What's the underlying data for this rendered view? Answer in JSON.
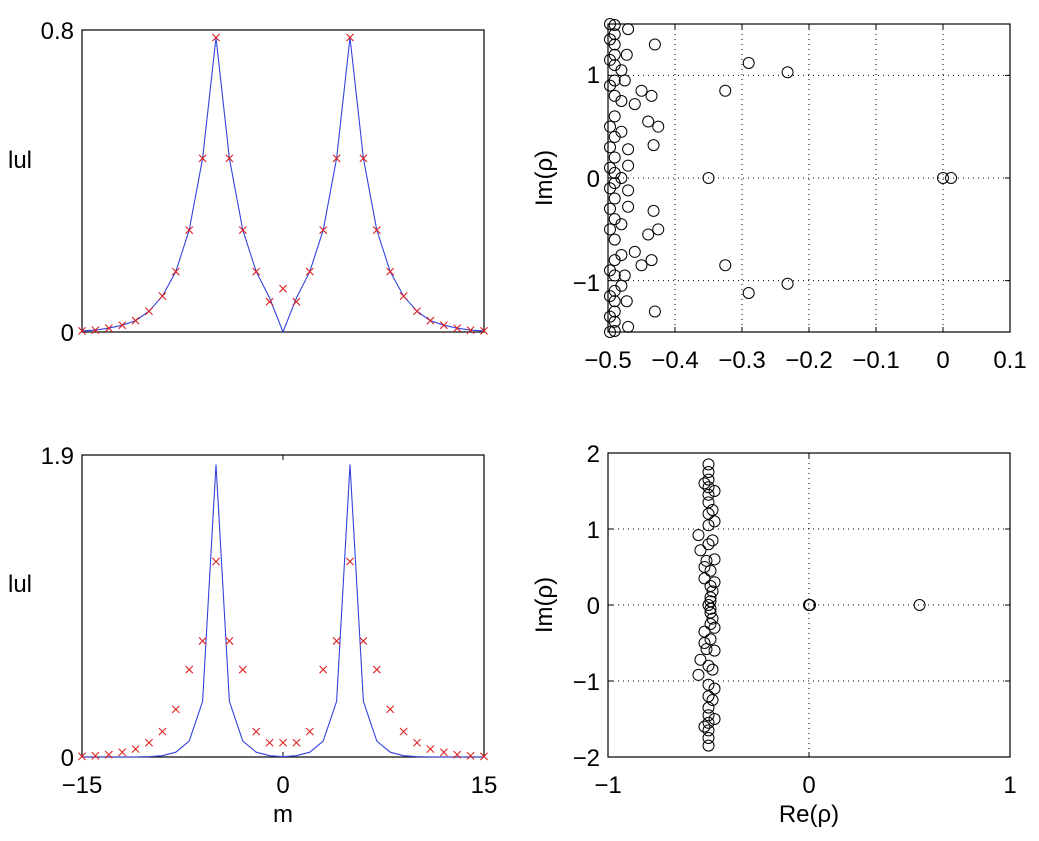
{
  "figure": {
    "colors": {
      "line": "#3344dd",
      "marker": "#dd2222",
      "circle": "#000000"
    }
  },
  "chart_data": [
    {
      "type": "line",
      "panel": "top-left",
      "title": "",
      "xlabel": "",
      "ylabel": "lul",
      "xlim": [
        -15,
        15
      ],
      "ylim": [
        0,
        0.8
      ],
      "xticks": [],
      "yticks": [
        "0",
        "0.8"
      ],
      "grid": false,
      "series": [
        {
          "name": "line",
          "style": "line",
          "x": [
            -15,
            -14,
            -13,
            -12,
            -11,
            -10,
            -9,
            -8,
            -7,
            -6,
            -5,
            -4,
            -3,
            -2,
            -1,
            0,
            1,
            2,
            3,
            4,
            5,
            6,
            7,
            8,
            9,
            10,
            11,
            12,
            13,
            14,
            15
          ],
          "y": [
            0.003,
            0.005,
            0.01,
            0.018,
            0.03,
            0.055,
            0.095,
            0.16,
            0.27,
            0.46,
            0.78,
            0.46,
            0.27,
            0.16,
            0.09,
            0.0,
            0.09,
            0.16,
            0.27,
            0.46,
            0.78,
            0.46,
            0.27,
            0.16,
            0.095,
            0.055,
            0.03,
            0.018,
            0.01,
            0.005,
            0.003
          ]
        },
        {
          "name": "markers",
          "style": "x",
          "x": [
            -15,
            -14,
            -13,
            -12,
            -11,
            -10,
            -9,
            -8,
            -7,
            -6,
            -5,
            -4,
            -3,
            -2,
            -1,
            0,
            1,
            2,
            3,
            4,
            5,
            6,
            7,
            8,
            9,
            10,
            11,
            12,
            13,
            14,
            15
          ],
          "y": [
            0.003,
            0.005,
            0.01,
            0.018,
            0.03,
            0.055,
            0.095,
            0.16,
            0.27,
            0.46,
            0.78,
            0.46,
            0.27,
            0.16,
            0.08,
            0.115,
            0.08,
            0.16,
            0.27,
            0.46,
            0.78,
            0.46,
            0.27,
            0.16,
            0.095,
            0.055,
            0.03,
            0.018,
            0.01,
            0.005,
            0.003
          ]
        }
      ]
    },
    {
      "type": "scatter",
      "panel": "top-right",
      "title": "",
      "xlabel": "",
      "ylabel": "Im(ρ)",
      "xlim": [
        -0.5,
        0.1
      ],
      "ylim": [
        -1.5,
        1.5
      ],
      "xticks": [
        "−0.5",
        "−0.4",
        "−0.3",
        "−0.2",
        "−0.1",
        "0",
        "0.1"
      ],
      "xtick_values": [
        -0.5,
        -0.4,
        -0.3,
        -0.2,
        -0.1,
        0,
        0.1
      ],
      "yticks": [
        "−1",
        "0",
        "1"
      ],
      "ytick_values": [
        -1,
        0,
        1
      ],
      "grid": true,
      "series": [
        {
          "name": "eigenvalues",
          "style": "o",
          "points": [
            [
              0.0,
              0.0
            ],
            [
              0.012,
              0.0
            ],
            [
              -0.35,
              0.0
            ],
            [
              -0.232,
              1.03
            ],
            [
              -0.232,
              -1.03
            ],
            [
              -0.29,
              1.12
            ],
            [
              -0.29,
              -1.12
            ],
            [
              -0.325,
              0.85
            ],
            [
              -0.325,
              -0.85
            ],
            [
              -0.43,
              1.3
            ],
            [
              -0.43,
              -1.3
            ],
            [
              -0.425,
              0.5
            ],
            [
              -0.425,
              -0.5
            ],
            [
              -0.44,
              0.55
            ],
            [
              -0.44,
              -0.55
            ],
            [
              -0.432,
              0.32
            ],
            [
              -0.432,
              -0.32
            ],
            [
              -0.435,
              0.8
            ],
            [
              -0.435,
              -0.8
            ],
            [
              -0.45,
              0.85
            ],
            [
              -0.45,
              -0.85
            ],
            [
              -0.46,
              0.72
            ],
            [
              -0.46,
              -0.72
            ],
            [
              -0.47,
              1.45
            ],
            [
              -0.47,
              -1.45
            ],
            [
              -0.472,
              1.2
            ],
            [
              -0.472,
              -1.2
            ],
            [
              -0.475,
              0.95
            ],
            [
              -0.475,
              -0.95
            ],
            [
              -0.47,
              0.28
            ],
            [
              -0.47,
              -0.28
            ],
            [
              -0.47,
              0.12
            ],
            [
              -0.47,
              -0.12
            ],
            [
              -0.48,
              0.75
            ],
            [
              -0.48,
              -0.75
            ],
            [
              -0.48,
              1.05
            ],
            [
              -0.48,
              -1.05
            ],
            [
              -0.48,
              0.45
            ],
            [
              -0.48,
              -0.45
            ],
            [
              -0.48,
              0.0
            ],
            [
              -0.49,
              1.49
            ],
            [
              -0.49,
              -1.49
            ],
            [
              -0.49,
              1.4
            ],
            [
              -0.49,
              -1.4
            ],
            [
              -0.49,
              1.3
            ],
            [
              -0.49,
              -1.3
            ],
            [
              -0.49,
              1.2
            ],
            [
              -0.49,
              -1.2
            ],
            [
              -0.49,
              1.1
            ],
            [
              -0.49,
              -1.1
            ],
            [
              -0.49,
              0.95
            ],
            [
              -0.49,
              -0.95
            ],
            [
              -0.49,
              0.8
            ],
            [
              -0.49,
              -0.8
            ],
            [
              -0.49,
              0.6
            ],
            [
              -0.49,
              -0.6
            ],
            [
              -0.49,
              0.4
            ],
            [
              -0.49,
              -0.4
            ],
            [
              -0.49,
              0.2
            ],
            [
              -0.49,
              -0.2
            ],
            [
              -0.49,
              0.05
            ],
            [
              -0.49,
              -0.05
            ],
            [
              -0.497,
              1.5
            ],
            [
              -0.497,
              -1.5
            ],
            [
              -0.497,
              1.35
            ],
            [
              -0.497,
              -1.35
            ],
            [
              -0.497,
              1.15
            ],
            [
              -0.497,
              -1.15
            ],
            [
              -0.497,
              0.9
            ],
            [
              -0.497,
              -0.9
            ],
            [
              -0.497,
              0.5
            ],
            [
              -0.497,
              -0.5
            ],
            [
              -0.497,
              0.3
            ],
            [
              -0.497,
              -0.3
            ],
            [
              -0.497,
              0.1
            ],
            [
              -0.497,
              -0.1
            ]
          ]
        }
      ]
    },
    {
      "type": "line",
      "panel": "bottom-left",
      "title": "",
      "xlabel": "m",
      "ylabel": "lul",
      "xlim": [
        -15,
        15
      ],
      "ylim": [
        0,
        1.9
      ],
      "xticks": [
        "−15",
        "0",
        "15"
      ],
      "xtick_values": [
        -15,
        0,
        15
      ],
      "yticks": [
        "0",
        "1.9"
      ],
      "ytick_values": [
        0,
        1.9
      ],
      "grid": false,
      "series": [
        {
          "name": "line",
          "style": "line",
          "x": [
            -15,
            -14,
            -13,
            -12,
            -11,
            -10,
            -9,
            -8,
            -7,
            -6,
            -5,
            -4,
            -3,
            -2,
            -1,
            0,
            1,
            2,
            3,
            4,
            5,
            6,
            7,
            8,
            9,
            10,
            11,
            12,
            13,
            14,
            15
          ],
          "y": [
            0.0,
            0.0,
            0.0,
            0.0,
            0.0,
            0.002,
            0.008,
            0.03,
            0.1,
            0.35,
            1.84,
            0.35,
            0.1,
            0.03,
            0.008,
            0.002,
            0.008,
            0.03,
            0.1,
            0.35,
            1.84,
            0.35,
            0.1,
            0.03,
            0.008,
            0.002,
            0.0,
            0.0,
            0.0,
            0.0,
            0.0
          ]
        },
        {
          "name": "markers",
          "style": "x",
          "x": [
            -15,
            -14,
            -13,
            -12,
            -11,
            -10,
            -9,
            -8,
            -7,
            -6,
            -5,
            -4,
            -3,
            -2,
            -1,
            0,
            1,
            2,
            3,
            4,
            5,
            6,
            7,
            8,
            9,
            10,
            11,
            12,
            13,
            14,
            15
          ],
          "y": [
            0.004,
            0.008,
            0.015,
            0.03,
            0.05,
            0.09,
            0.16,
            0.3,
            0.55,
            0.73,
            1.23,
            0.73,
            0.55,
            0.16,
            0.09,
            0.09,
            0.09,
            0.16,
            0.55,
            0.73,
            1.23,
            0.73,
            0.55,
            0.3,
            0.16,
            0.09,
            0.05,
            0.03,
            0.015,
            0.008,
            0.004
          ]
        }
      ]
    },
    {
      "type": "scatter",
      "panel": "bottom-right",
      "title": "",
      "xlabel": "Re(ρ)",
      "ylabel": "Im(ρ)",
      "xlim": [
        -1,
        1
      ],
      "ylim": [
        -2,
        2
      ],
      "xticks": [
        "−1",
        "0",
        "1"
      ],
      "xtick_values": [
        -1,
        0,
        1
      ],
      "yticks": [
        "−2",
        "−1",
        "0",
        "1",
        "2"
      ],
      "ytick_values": [
        -2,
        -1,
        0,
        1,
        2
      ],
      "grid": true,
      "series": [
        {
          "name": "eigenvalues",
          "style": "o",
          "points": [
            [
              0.0,
              0.0
            ],
            [
              0.005,
              0.0
            ],
            [
              0.55,
              0.0
            ],
            [
              -0.55,
              0.92
            ],
            [
              -0.55,
              -0.92
            ],
            [
              -0.54,
              0.72
            ],
            [
              -0.54,
              -0.72
            ],
            [
              -0.5,
              1.2
            ],
            [
              -0.5,
              -1.2
            ],
            [
              -0.51,
              0.58
            ],
            [
              -0.51,
              -0.58
            ],
            [
              -0.52,
              0.35
            ],
            [
              -0.52,
              -0.35
            ],
            [
              -0.48,
              0.18
            ],
            [
              -0.48,
              -0.18
            ],
            [
              -0.49,
              0.05
            ],
            [
              -0.49,
              -0.05
            ],
            [
              -0.5,
              0.0
            ],
            [
              -0.5,
              1.85
            ],
            [
              -0.5,
              -1.85
            ],
            [
              -0.5,
              1.75
            ],
            [
              -0.5,
              -1.75
            ],
            [
              -0.5,
              1.65
            ],
            [
              -0.5,
              -1.65
            ],
            [
              -0.5,
              1.55
            ],
            [
              -0.5,
              -1.55
            ],
            [
              -0.5,
              1.45
            ],
            [
              -0.5,
              -1.45
            ],
            [
              -0.5,
              1.35
            ],
            [
              -0.5,
              -1.35
            ],
            [
              -0.5,
              1.05
            ],
            [
              -0.5,
              -1.05
            ],
            [
              -0.5,
              0.8
            ],
            [
              -0.5,
              -0.8
            ],
            [
              -0.49,
              0.45
            ],
            [
              -0.49,
              -0.45
            ],
            [
              -0.49,
              0.25
            ],
            [
              -0.49,
              -0.25
            ],
            [
              -0.49,
              0.1
            ],
            [
              -0.49,
              -0.1
            ],
            [
              -0.47,
              1.5
            ],
            [
              -0.47,
              -1.5
            ],
            [
              -0.47,
              1.1
            ],
            [
              -0.47,
              -1.1
            ],
            [
              -0.47,
              0.6
            ],
            [
              -0.47,
              -0.6
            ],
            [
              -0.47,
              0.3
            ],
            [
              -0.47,
              -0.3
            ],
            [
              -0.48,
              1.25
            ],
            [
              -0.48,
              -1.25
            ],
            [
              -0.48,
              0.85
            ],
            [
              -0.48,
              -0.85
            ],
            [
              -0.52,
              1.6
            ],
            [
              -0.52,
              -1.6
            ],
            [
              -0.52,
              0.5
            ],
            [
              -0.52,
              -0.5
            ]
          ]
        }
      ]
    }
  ]
}
